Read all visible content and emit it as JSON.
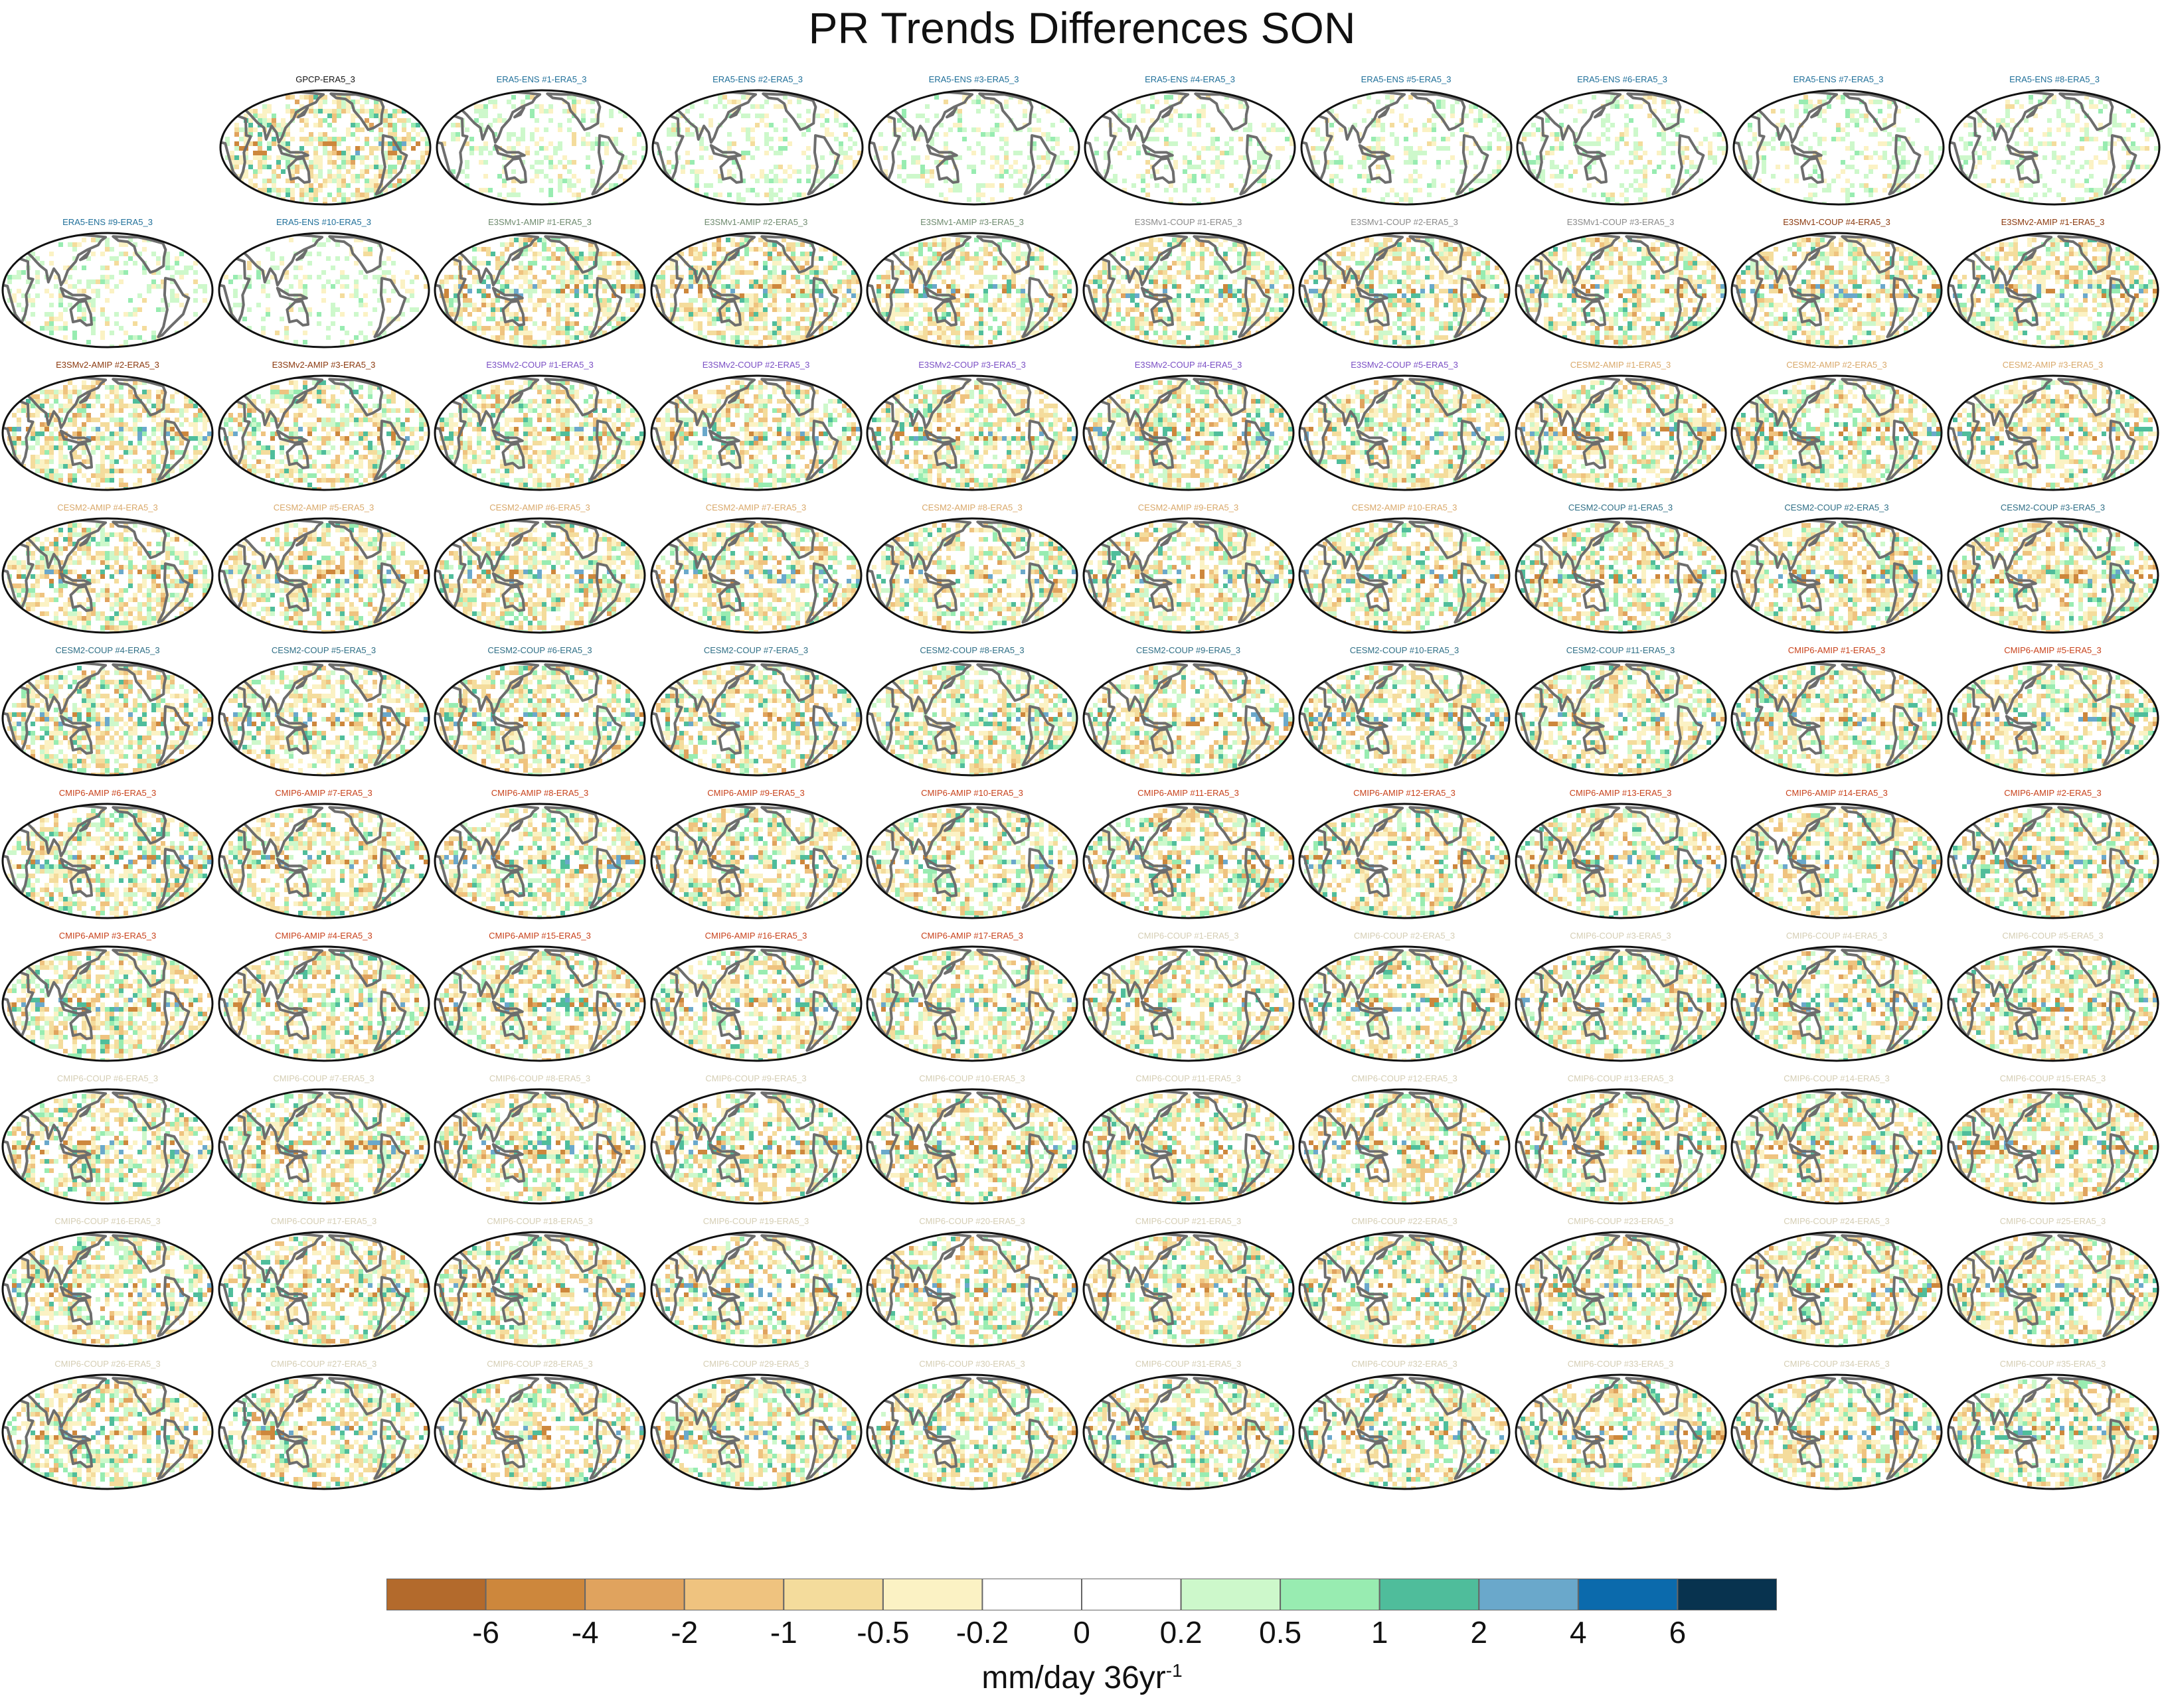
{
  "chart_data": {
    "type": "map",
    "title": "PR Trends Differences SON",
    "colorbar": {
      "labels": [
        "-6",
        "-4",
        "-2",
        "-1",
        "-0.5",
        "-0.2",
        "0",
        "0.2",
        "0.5",
        "1",
        "2",
        "4",
        "6"
      ],
      "colors": [
        "#b36a2c",
        "#cd873c",
        "#e0a35e",
        "#efc37f",
        "#f4dc9c",
        "#fbf2c4",
        "#ffffff",
        "#ffffff",
        "#cdf8cb",
        "#98ecb1",
        "#4fbd9b",
        "#6aa8cb",
        "#0b6aac",
        "#08334f"
      ],
      "units": "mm/day 36yr",
      "units_exp": "-1"
    },
    "panels": [
      {
        "label": "GPCP-ERA5_3",
        "color": "#111111"
      },
      {
        "label": "ERA5-ENS #1-ERA5_3",
        "color": "#1f6f99"
      },
      {
        "label": "ERA5-ENS #2-ERA5_3",
        "color": "#1f6f99"
      },
      {
        "label": "ERA5-ENS #3-ERA5_3",
        "color": "#1f6f99"
      },
      {
        "label": "ERA5-ENS #4-ERA5_3",
        "color": "#1f6f99"
      },
      {
        "label": "ERA5-ENS #5-ERA5_3",
        "color": "#1f6f99"
      },
      {
        "label": "ERA5-ENS #6-ERA5_3",
        "color": "#1f6f99"
      },
      {
        "label": "ERA5-ENS #7-ERA5_3",
        "color": "#1f6f99"
      },
      {
        "label": "ERA5-ENS #8-ERA5_3",
        "color": "#1f6f99"
      },
      {
        "label": "ERA5-ENS #9-ERA5_3",
        "color": "#1f6f99"
      },
      {
        "label": "ERA5-ENS #10-ERA5_3",
        "color": "#1f6f99"
      },
      {
        "label": "E3SMv1-AMIP #1-ERA5_3",
        "color": "#6e8a6e"
      },
      {
        "label": "E3SMv1-AMIP #2-ERA5_3",
        "color": "#6e8a6e"
      },
      {
        "label": "E3SMv1-AMIP #3-ERA5_3",
        "color": "#6e8a6e"
      },
      {
        "label": "E3SMv1-COUP #1-ERA5_3",
        "color": "#8a8a8a"
      },
      {
        "label": "E3SMv1-COUP #2-ERA5_3",
        "color": "#8a8a8a"
      },
      {
        "label": "E3SMv1-COUP #3-ERA5_3",
        "color": "#8a8a8a"
      },
      {
        "label": "E3SMv1-COUP #4-ERA5_3",
        "color": "#8b3a0f"
      },
      {
        "label": "E3SMv2-AMIP #1-ERA5_3",
        "color": "#8b3a0f"
      },
      {
        "label": "E3SMv2-AMIP #2-ERA5_3",
        "color": "#8b3a0f"
      },
      {
        "label": "E3SMv2-AMIP #3-ERA5_3",
        "color": "#8b3a0f"
      },
      {
        "label": "E3SMv2-COUP #1-ERA5_3",
        "color": "#7a4fc4"
      },
      {
        "label": "E3SMv2-COUP #2-ERA5_3",
        "color": "#7a4fc4"
      },
      {
        "label": "E3SMv2-COUP #3-ERA5_3",
        "color": "#7a4fc4"
      },
      {
        "label": "E3SMv2-COUP #4-ERA5_3",
        "color": "#7a4fc4"
      },
      {
        "label": "E3SMv2-COUP #5-ERA5_3",
        "color": "#7a4fc4"
      },
      {
        "label": "CESM2-AMIP #1-ERA5_3",
        "color": "#d9a96b"
      },
      {
        "label": "CESM2-AMIP #2-ERA5_3",
        "color": "#d9a96b"
      },
      {
        "label": "CESM2-AMIP #3-ERA5_3",
        "color": "#d9a96b"
      },
      {
        "label": "CESM2-AMIP #4-ERA5_3",
        "color": "#d9a96b"
      },
      {
        "label": "CESM2-AMIP #5-ERA5_3",
        "color": "#d9a96b"
      },
      {
        "label": "CESM2-AMIP #6-ERA5_3",
        "color": "#d9a96b"
      },
      {
        "label": "CESM2-AMIP #7-ERA5_3",
        "color": "#d9a96b"
      },
      {
        "label": "CESM2-AMIP #8-ERA5_3",
        "color": "#d9a96b"
      },
      {
        "label": "CESM2-AMIP #9-ERA5_3",
        "color": "#d9a96b"
      },
      {
        "label": "CESM2-AMIP #10-ERA5_3",
        "color": "#d9a96b"
      },
      {
        "label": "CESM2-COUP #1-ERA5_3",
        "color": "#2f6f86"
      },
      {
        "label": "CESM2-COUP #2-ERA5_3",
        "color": "#2f6f86"
      },
      {
        "label": "CESM2-COUP #3-ERA5_3",
        "color": "#2f6f86"
      },
      {
        "label": "CESM2-COUP #4-ERA5_3",
        "color": "#2f6f86"
      },
      {
        "label": "CESM2-COUP #5-ERA5_3",
        "color": "#2f6f86"
      },
      {
        "label": "CESM2-COUP #6-ERA5_3",
        "color": "#2f6f86"
      },
      {
        "label": "CESM2-COUP #7-ERA5_3",
        "color": "#2f6f86"
      },
      {
        "label": "CESM2-COUP #8-ERA5_3",
        "color": "#2f6f86"
      },
      {
        "label": "CESM2-COUP #9-ERA5_3",
        "color": "#2f6f86"
      },
      {
        "label": "CESM2-COUP #10-ERA5_3",
        "color": "#2f6f86"
      },
      {
        "label": "CESM2-COUP #11-ERA5_3",
        "color": "#2f6f86"
      },
      {
        "label": "CMIP6-AMIP #1-ERA5_3",
        "color": "#c8421b"
      },
      {
        "label": "CMIP6-AMIP #5-ERA5_3",
        "color": "#c8421b"
      },
      {
        "label": "CMIP6-AMIP #6-ERA5_3",
        "color": "#c8421b"
      },
      {
        "label": "CMIP6-AMIP #7-ERA5_3",
        "color": "#c8421b"
      },
      {
        "label": "CMIP6-AMIP #8-ERA5_3",
        "color": "#c8421b"
      },
      {
        "label": "CMIP6-AMIP #9-ERA5_3",
        "color": "#c8421b"
      },
      {
        "label": "CMIP6-AMIP #10-ERA5_3",
        "color": "#c8421b"
      },
      {
        "label": "CMIP6-AMIP #11-ERA5_3",
        "color": "#c8421b"
      },
      {
        "label": "CMIP6-AMIP #12-ERA5_3",
        "color": "#c8421b"
      },
      {
        "label": "CMIP6-AMIP #13-ERA5_3",
        "color": "#c8421b"
      },
      {
        "label": "CMIP6-AMIP #14-ERA5_3",
        "color": "#c8421b"
      },
      {
        "label": "CMIP6-AMIP #2-ERA5_3",
        "color": "#c8421b"
      },
      {
        "label": "CMIP6-AMIP #3-ERA5_3",
        "color": "#c8421b"
      },
      {
        "label": "CMIP6-AMIP #4-ERA5_3",
        "color": "#c8421b"
      },
      {
        "label": "CMIP6-AMIP #15-ERA5_3",
        "color": "#c8421b"
      },
      {
        "label": "CMIP6-AMIP #16-ERA5_3",
        "color": "#c8421b"
      },
      {
        "label": "CMIP6-AMIP #17-ERA5_3",
        "color": "#c8421b"
      },
      {
        "label": "CMIP6-COUP #1-ERA5_3",
        "color": "#d5ceb4"
      },
      {
        "label": "CMIP6-COUP #2-ERA5_3",
        "color": "#d5ceb4"
      },
      {
        "label": "CMIP6-COUP #3-ERA5_3",
        "color": "#d5ceb4"
      },
      {
        "label": "CMIP6-COUP #4-ERA5_3",
        "color": "#d5ceb4"
      },
      {
        "label": "CMIP6-COUP #5-ERA5_3",
        "color": "#d5ceb4"
      },
      {
        "label": "CMIP6-COUP #6-ERA5_3",
        "color": "#d5ceb4"
      },
      {
        "label": "CMIP6-COUP #7-ERA5_3",
        "color": "#d5ceb4"
      },
      {
        "label": "CMIP6-COUP #8-ERA5_3",
        "color": "#d5ceb4"
      },
      {
        "label": "CMIP6-COUP #9-ERA5_3",
        "color": "#d5ceb4"
      },
      {
        "label": "CMIP6-COUP #10-ERA5_3",
        "color": "#d5ceb4"
      },
      {
        "label": "CMIP6-COUP #11-ERA5_3",
        "color": "#d5ceb4"
      },
      {
        "label": "CMIP6-COUP #12-ERA5_3",
        "color": "#d5ceb4"
      },
      {
        "label": "CMIP6-COUP #13-ERA5_3",
        "color": "#d5ceb4"
      },
      {
        "label": "CMIP6-COUP #14-ERA5_3",
        "color": "#d5ceb4"
      },
      {
        "label": "CMIP6-COUP #15-ERA5_3",
        "color": "#d5ceb4"
      },
      {
        "label": "CMIP6-COUP #16-ERA5_3",
        "color": "#d5ceb4"
      },
      {
        "label": "CMIP6-COUP #17-ERA5_3",
        "color": "#d5ceb4"
      },
      {
        "label": "CMIP6-COUP #18-ERA5_3",
        "color": "#d5ceb4"
      },
      {
        "label": "CMIP6-COUP #19-ERA5_3",
        "color": "#d5ceb4"
      },
      {
        "label": "CMIP6-COUP #20-ERA5_3",
        "color": "#d5ceb4"
      },
      {
        "label": "CMIP6-COUP #21-ERA5_3",
        "color": "#d5ceb4"
      },
      {
        "label": "CMIP6-COUP #22-ERA5_3",
        "color": "#d5ceb4"
      },
      {
        "label": "CMIP6-COUP #23-ERA5_3",
        "color": "#d5ceb4"
      },
      {
        "label": "CMIP6-COUP #24-ERA5_3",
        "color": "#d5ceb4"
      },
      {
        "label": "CMIP6-COUP #25-ERA5_3",
        "color": "#d5ceb4"
      },
      {
        "label": "CMIP6-COUP #26-ERA5_3",
        "color": "#d5ceb4"
      },
      {
        "label": "CMIP6-COUP #27-ERA5_3",
        "color": "#d5ceb4"
      },
      {
        "label": "CMIP6-COUP #28-ERA5_3",
        "color": "#d5ceb4"
      },
      {
        "label": "CMIP6-COUP #29-ERA5_3",
        "color": "#d5ceb4"
      },
      {
        "label": "CMIP6-COUP #30-ERA5_3",
        "color": "#d5ceb4"
      },
      {
        "label": "CMIP6-COUP #31-ERA5_3",
        "color": "#d5ceb4"
      },
      {
        "label": "CMIP6-COUP #32-ERA5_3",
        "color": "#d5ceb4"
      },
      {
        "label": "CMIP6-COUP #33-ERA5_3",
        "color": "#d5ceb4"
      },
      {
        "label": "CMIP6-COUP #34-ERA5_3",
        "color": "#d5ceb4"
      },
      {
        "label": "CMIP6-COUP #35-ERA5_3",
        "color": "#d5ceb4"
      }
    ]
  }
}
